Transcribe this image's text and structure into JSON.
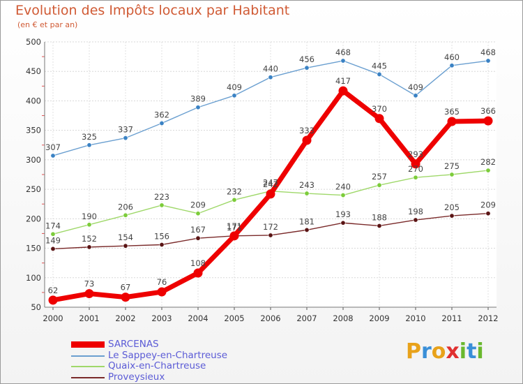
{
  "title": "Evolution des Impôts locaux par Habitant",
  "subtitle": "(en € et par an)",
  "brand": {
    "letters": [
      "P",
      "r",
      "o",
      "x",
      "i",
      "t",
      "i"
    ],
    "colors": [
      "#e8a21a",
      "#3a8fd8",
      "#e8a21a",
      "#e03030",
      "#6ab82e",
      "#3a8fd8",
      "#6ab82e"
    ]
  },
  "chart_data": {
    "type": "line",
    "title": "Evolution des Impôts locaux par Habitant",
    "subtitle": "(en € et par an)",
    "xlabel": "",
    "ylabel": "",
    "x": [
      "2000",
      "2001",
      "2002",
      "2003",
      "2004",
      "2005",
      "2006",
      "2007",
      "2008",
      "2009",
      "2010",
      "2011",
      "2012"
    ],
    "ylim": [
      50,
      500
    ],
    "yticks": [
      50,
      100,
      150,
      200,
      250,
      300,
      350,
      400,
      450,
      500
    ],
    "grid": true,
    "legend": "bottom-left",
    "series": [
      {
        "name": "SARCENAS",
        "color": "#ee0000",
        "bold": true,
        "values": [
          62,
          73,
          67,
          76,
          108,
          171,
          242,
          333,
          417,
          370,
          293,
          365,
          366
        ]
      },
      {
        "name": "Le Sappey-en-Chartreuse",
        "color": "#6a9fd0",
        "marker": "#3a82c4",
        "values": [
          307,
          325,
          337,
          362,
          389,
          409,
          440,
          456,
          468,
          445,
          409,
          460,
          468
        ]
      },
      {
        "name": "Quaix-en-Chartreuse",
        "color": "#9fd86a",
        "marker": "#7ccc3a",
        "values": [
          174,
          190,
          206,
          223,
          209,
          232,
          247,
          243,
          240,
          257,
          270,
          275,
          282
        ]
      },
      {
        "name": "Proveysieux",
        "color": "#7a2a2a",
        "marker": "#5a1414",
        "values": [
          149,
          152,
          154,
          156,
          167,
          171,
          172,
          181,
          193,
          188,
          198,
          205,
          209
        ]
      }
    ]
  }
}
